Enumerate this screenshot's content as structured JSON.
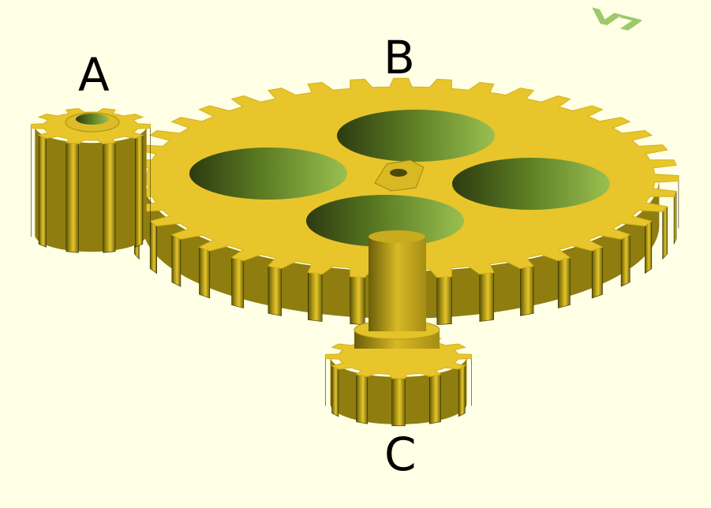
{
  "labels": {
    "gear_a": "A",
    "gear_b": "B",
    "gear_c": "C"
  },
  "engraving": "V7",
  "colors": {
    "background": "#ffffe5",
    "gear_face": "#e8c52a",
    "gear_side": "#c8a81c",
    "gear_dark": "#3b3a05",
    "hole_green": "#8fb04a",
    "label": "#000000"
  },
  "gears": [
    {
      "id": "A",
      "teeth": 10,
      "role": "small pinion with shaft hole"
    },
    {
      "id": "B",
      "teeth": 40,
      "role": "large spur gear with four lightening holes"
    },
    {
      "id": "C",
      "teeth": 12,
      "role": "small pinion below, on hub"
    }
  ]
}
